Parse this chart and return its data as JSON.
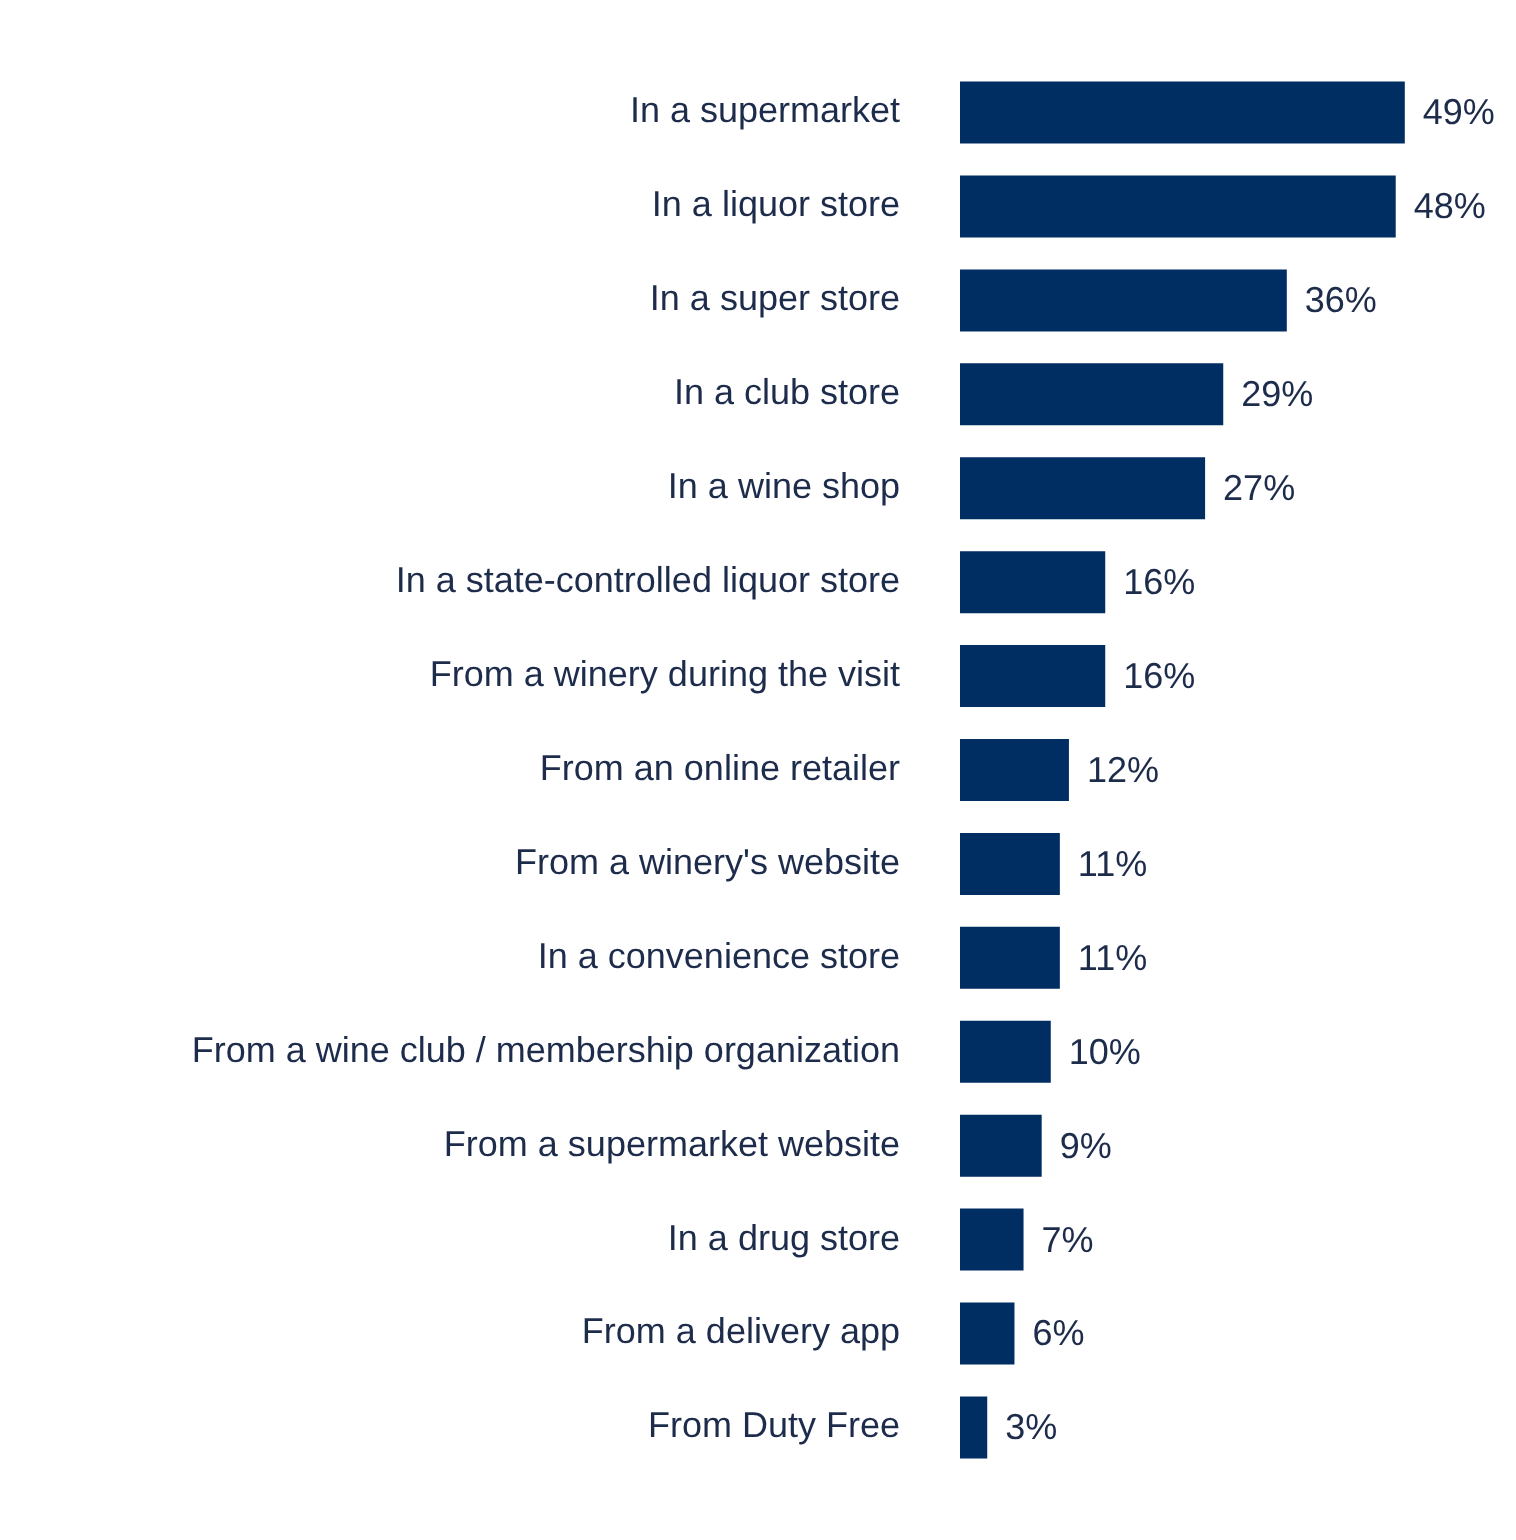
{
  "chart_data": {
    "type": "bar",
    "orientation": "horizontal",
    "categories": [
      "In a supermarket",
      "In a liquor store",
      "In a super store",
      "In a club store",
      "In a wine shop",
      "In a state-controlled liquor store",
      "From a winery during the visit",
      "From an online retailer",
      "From a winery's website",
      "In a convenience store",
      "From a wine club / membership organization",
      "From a supermarket website",
      "In a drug store",
      "From a delivery app",
      "From Duty Free"
    ],
    "values": [
      49,
      48,
      36,
      29,
      27,
      16,
      16,
      12,
      11,
      11,
      10,
      9,
      7,
      6,
      3
    ],
    "value_labels": [
      "49%",
      "48%",
      "36%",
      "29%",
      "27%",
      "16%",
      "16%",
      "12%",
      "11%",
      "11%",
      "10%",
      "9%",
      "7%",
      "6%",
      "3%"
    ],
    "color": "#002d62",
    "legend": false,
    "tick_labels": "y"
  }
}
